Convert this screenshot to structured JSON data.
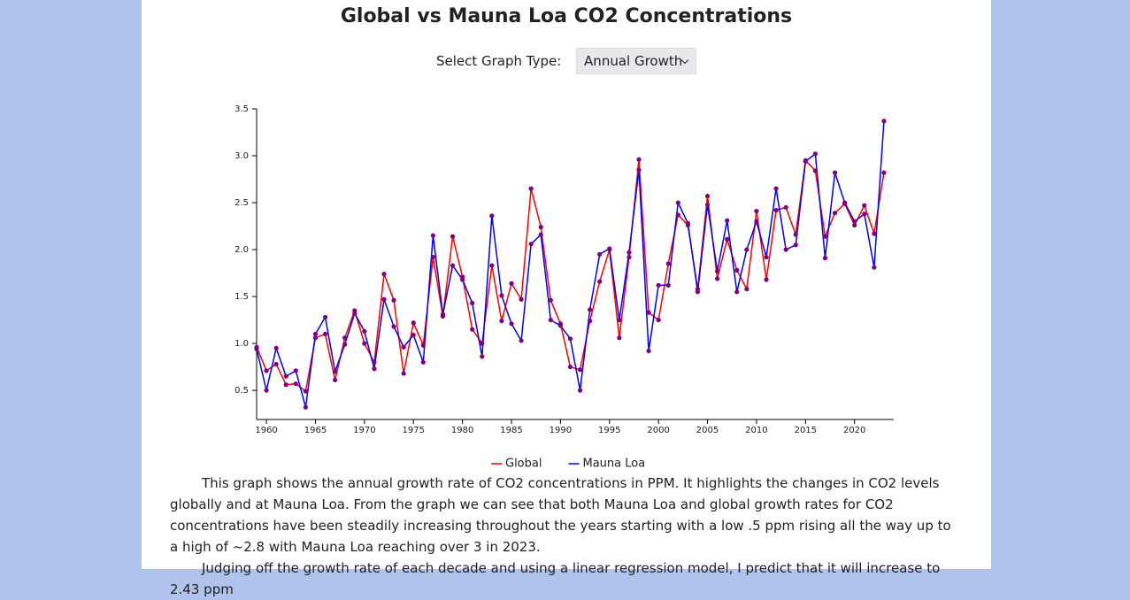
{
  "header": {
    "title": "Global vs Mauna Loa CO2 Concentrations"
  },
  "controls": {
    "label": "Select Graph Type:",
    "selected": "Annual Growth"
  },
  "chart_data": {
    "type": "line",
    "x": [
      1959,
      1960,
      1961,
      1962,
      1963,
      1964,
      1965,
      1966,
      1967,
      1968,
      1969,
      1970,
      1971,
      1972,
      1973,
      1974,
      1975,
      1976,
      1977,
      1978,
      1979,
      1980,
      1981,
      1982,
      1983,
      1984,
      1985,
      1986,
      1987,
      1988,
      1989,
      1990,
      1991,
      1992,
      1993,
      1994,
      1995,
      1996,
      1997,
      1998,
      1999,
      2000,
      2001,
      2002,
      2003,
      2004,
      2005,
      2006,
      2007,
      2008,
      2009,
      2010,
      2011,
      2012,
      2013,
      2014,
      2015,
      2016,
      2017,
      2018,
      2019,
      2020,
      2021,
      2022,
      2023
    ],
    "series": [
      {
        "name": "Global",
        "color": "#ff0000",
        "values": [
          0.96,
          0.71,
          0.78,
          0.56,
          0.57,
          0.49,
          1.06,
          1.1,
          0.61,
          1.06,
          1.35,
          1.0,
          0.8,
          1.74,
          1.46,
          0.68,
          1.22,
          0.98,
          1.92,
          1.29,
          2.14,
          1.71,
          1.15,
          1.0,
          1.83,
          1.24,
          1.64,
          1.47,
          2.65,
          2.24,
          1.46,
          1.21,
          0.75,
          0.72,
          1.24,
          1.66,
          2.0,
          1.06,
          1.92,
          2.96,
          1.33,
          1.25,
          1.85,
          2.37,
          2.26,
          1.58,
          2.57,
          1.69,
          2.11,
          1.78,
          1.58,
          2.41,
          1.68,
          2.42,
          2.45,
          2.16,
          2.95,
          2.84,
          2.14,
          2.39,
          2.49,
          2.26,
          2.47,
          2.17,
          2.82
        ]
      },
      {
        "name": "Mauna Loa",
        "color": "#0000ff",
        "values": [
          0.94,
          0.5,
          0.95,
          0.65,
          0.71,
          0.32,
          1.1,
          1.28,
          0.7,
          0.99,
          1.32,
          1.13,
          0.73,
          1.47,
          1.18,
          0.96,
          1.09,
          0.8,
          2.15,
          1.31,
          1.83,
          1.68,
          1.43,
          0.86,
          2.36,
          1.51,
          1.21,
          1.03,
          2.06,
          2.16,
          1.25,
          1.19,
          1.05,
          0.5,
          1.36,
          1.95,
          2.01,
          1.25,
          1.97,
          2.85,
          0.92,
          1.62,
          1.62,
          2.5,
          2.28,
          1.55,
          2.48,
          1.77,
          2.31,
          1.55,
          2.0,
          2.3,
          1.92,
          2.65,
          2.0,
          2.05,
          2.94,
          3.02,
          1.91,
          2.82,
          2.5,
          2.3,
          2.38,
          1.81,
          3.37
        ]
      }
    ],
    "marker_color": "#800080",
    "xlim": [
      1959,
      2024
    ],
    "xticks": [
      1960,
      1965,
      1970,
      1975,
      1980,
      1985,
      1990,
      1995,
      2000,
      2005,
      2010,
      2015,
      2020
    ],
    "ylim": [
      0.19,
      3.5
    ],
    "yticks": [
      0.5,
      {
        "value": 1,
        "label": "1.0"
      },
      1.5,
      {
        "value": 2,
        "label": "2.0"
      },
      2.5,
      {
        "value": 3,
        "label": "3.0"
      },
      3.5
    ],
    "grid": false,
    "legend": "bottom"
  },
  "text": {
    "paragraphs": [
      "This graph shows the annual growth rate of CO2 concentrations in PPM. It highlights the changes in CO2 levels globally and at Mauna Loa. From the graph we can see that both Mauna Loa and global growth rates for CO2 concentrations have been steadily increasing throughout the years starting with a low .5 ppm rising all the way up to a high of ~2.8 with Mauna Loa reaching over 3 in 2023.",
      "Judging off the growth rate of each decade and using a linear regression model, I predict that it will increase to 2.43 ppm"
    ]
  }
}
